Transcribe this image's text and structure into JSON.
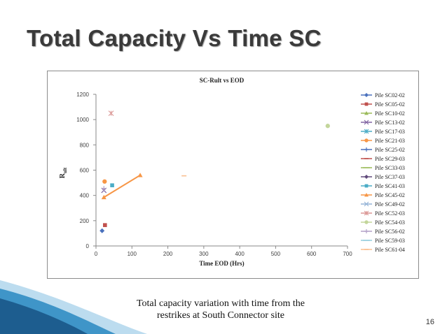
{
  "slide": {
    "title": "Total Capacity Vs Time SC",
    "caption_line1": "Total capacity variation with time from the",
    "caption_line2": "restrikes at South Connector site",
    "page_number": "16"
  },
  "colors": {
    "band_dark": "#1d5d8f",
    "band_light": "#3f95c8",
    "band_pale": "#bcdcef"
  },
  "chart_data": {
    "type": "scatter",
    "title": "SC-Rult vs EOD",
    "xlabel": "Time EOD (Hrs)",
    "ylabel_main": "R",
    "ylabel_sub": "ult",
    "xlim": [
      0,
      700
    ],
    "ylim": [
      0,
      1200
    ],
    "xticks": [
      0,
      100,
      200,
      300,
      400,
      500,
      600,
      700
    ],
    "yticks": [
      0,
      200,
      400,
      600,
      800,
      1000,
      1200
    ],
    "legend_position": "right",
    "series": [
      {
        "name": "Pile SC02-02",
        "marker": "diamond",
        "color": "#4a71bd",
        "points": [
          [
            17,
            120
          ]
        ]
      },
      {
        "name": "Pile SC05-02",
        "marker": "square",
        "color": "#c0504d",
        "points": [
          [
            25,
            165
          ]
        ]
      },
      {
        "name": "Pile SC10-02",
        "marker": "triangle",
        "color": "#9bbb59",
        "points": []
      },
      {
        "name": "Pile SC13-02",
        "marker": "x",
        "color": "#8064a2",
        "points": [
          [
            22,
            440
          ]
        ]
      },
      {
        "name": "Pile SC17-03",
        "marker": "star",
        "color": "#4bacc6",
        "points": []
      },
      {
        "name": "Pile SC21-03",
        "marker": "circle",
        "color": "#f79646",
        "points": [
          [
            24,
            510
          ]
        ]
      },
      {
        "name": "Pile SC25-02",
        "marker": "plus",
        "color": "#4a71bd",
        "points": []
      },
      {
        "name": "Pile SC29-03",
        "marker": "dash",
        "color": "#c0504d",
        "points": []
      },
      {
        "name": "Pile SC33-03",
        "marker": "line",
        "color": "#9bbb59",
        "points": []
      },
      {
        "name": "Pile SC37-03",
        "marker": "diamond",
        "color": "#604a7b",
        "points": []
      },
      {
        "name": "Pile SC41-03",
        "marker": "square",
        "color": "#4bacc6",
        "points": [
          [
            45,
            480
          ]
        ]
      },
      {
        "name": "Pile SC45-02",
        "marker": "triangle",
        "color": "#f79646",
        "points": [
          [
            22,
            385
          ],
          [
            123,
            560
          ]
        ],
        "connected": true
      },
      {
        "name": "Pile SC49-02",
        "marker": "x",
        "color": "#95b3d7",
        "points": []
      },
      {
        "name": "Pile SC52-03",
        "marker": "star",
        "color": "#da9694",
        "points": [
          [
            42,
            1050
          ]
        ]
      },
      {
        "name": "Pile SC54-03",
        "marker": "circle",
        "color": "#c3d69b",
        "points": [
          [
            645,
            950
          ]
        ]
      },
      {
        "name": "Pile SC56-02",
        "marker": "plus",
        "color": "#b2a1c7",
        "points": [
          [
            22,
            455
          ]
        ]
      },
      {
        "name": "Pile SC59-03",
        "marker": "line",
        "color": "#93cddd",
        "points": []
      },
      {
        "name": "Pile SC61-04",
        "marker": "dash",
        "color": "#fabf8f",
        "points": [
          [
            245,
            555
          ]
        ]
      }
    ]
  }
}
